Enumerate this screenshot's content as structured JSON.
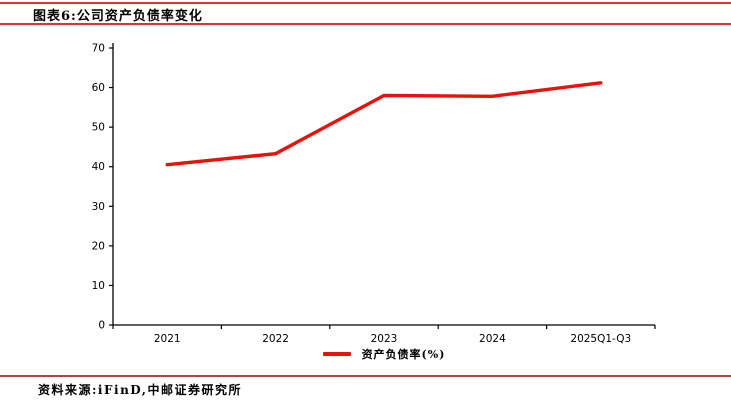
{
  "header": {
    "title": "图表6:公司资产负债率变化"
  },
  "footer": {
    "source_label": "资料来源:iFinD,中邮证券研究所"
  },
  "colors": {
    "header_rule": "#d6372c",
    "footer_rule": "#b04542",
    "series_red": "#e8120b",
    "axis": "#000000"
  },
  "chart_data": {
    "type": "line",
    "categories": [
      "2021",
      "2022",
      "2023",
      "2024",
      "2025Q1-Q3"
    ],
    "series": [
      {
        "name": "资产负债率(%)",
        "color": "#e8120b",
        "values": [
          40.5,
          43.3,
          58.0,
          57.8,
          61.2
        ]
      }
    ],
    "title": "",
    "xlabel": "",
    "ylabel": "",
    "ylim": [
      0,
      70
    ],
    "yticks": [
      0,
      10,
      20,
      30,
      40,
      50,
      60,
      70
    ],
    "grid": false,
    "legend_position": "bottom"
  }
}
